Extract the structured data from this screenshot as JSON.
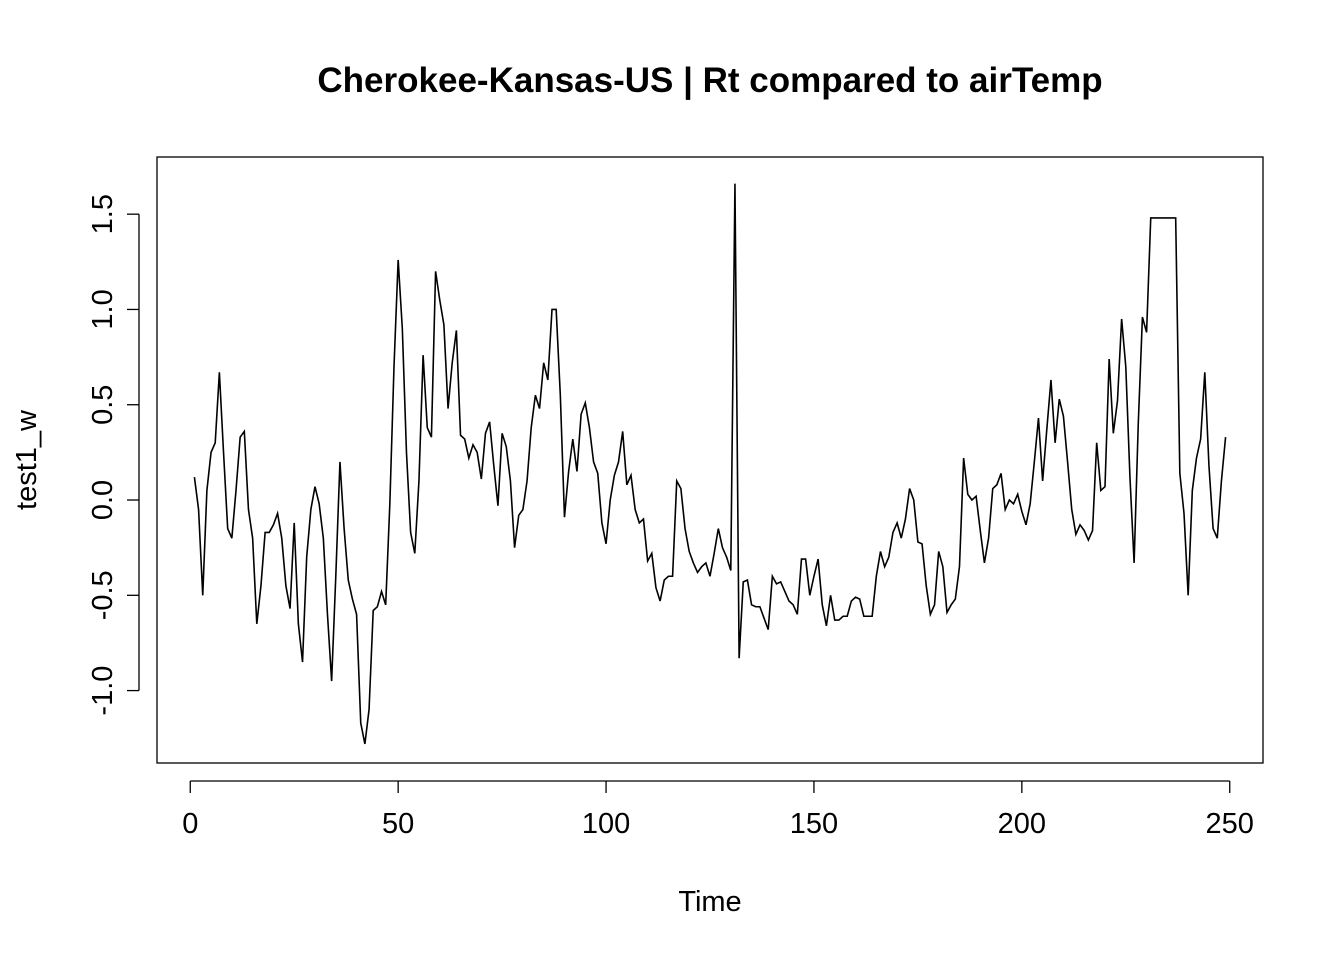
{
  "chart_data": {
    "type": "line",
    "title": "Cherokee-Kansas-US | Rt compared to airTemp",
    "xlabel": "Time",
    "ylabel": "test1_w",
    "xlim": [
      -8,
      258
    ],
    "ylim": [
      -1.38,
      1.8
    ],
    "x_ticks": [
      0,
      50,
      100,
      150,
      200,
      250
    ],
    "y_ticks": [
      -1.0,
      -0.5,
      0.0,
      0.5,
      1.0,
      1.5
    ],
    "x_tick_labels": [
      "0",
      "50",
      "100",
      "150",
      "200",
      "250"
    ],
    "y_tick_labels": [
      "-1.0",
      "-0.5",
      "0.0",
      "0.5",
      "1.0",
      "1.5"
    ],
    "grid": false,
    "legend": "none",
    "line_color": "#000000",
    "x_start": 1,
    "values": [
      0.12,
      -0.05,
      -0.5,
      0.05,
      0.25,
      0.3,
      0.67,
      0.25,
      -0.15,
      -0.2,
      0.05,
      0.33,
      0.36,
      -0.05,
      -0.2,
      -0.65,
      -0.45,
      -0.17,
      -0.17,
      -0.13,
      -0.07,
      -0.2,
      -0.45,
      -0.57,
      -0.12,
      -0.65,
      -0.85,
      -0.3,
      -0.05,
      0.07,
      -0.02,
      -0.2,
      -0.6,
      -0.95,
      -0.4,
      0.2,
      -0.15,
      -0.42,
      -0.52,
      -0.6,
      -1.17,
      -1.28,
      -1.1,
      -0.58,
      -0.56,
      -0.48,
      -0.55,
      -0.02,
      0.7,
      1.26,
      0.9,
      0.25,
      -0.17,
      -0.28,
      0.1,
      0.76,
      0.38,
      0.33,
      1.2,
      1.05,
      0.92,
      0.48,
      0.72,
      0.89,
      0.34,
      0.32,
      0.22,
      0.29,
      0.25,
      0.11,
      0.35,
      0.41,
      0.18,
      -0.03,
      0.35,
      0.28,
      0.1,
      -0.25,
      -0.08,
      -0.05,
      0.1,
      0.38,
      0.55,
      0.48,
      0.72,
      0.63,
      1.0,
      1.0,
      0.55,
      -0.09,
      0.15,
      0.32,
      0.15,
      0.45,
      0.51,
      0.38,
      0.2,
      0.14,
      -0.12,
      -0.23,
      0.0,
      0.13,
      0.2,
      0.36,
      0.08,
      0.13,
      -0.05,
      -0.12,
      -0.1,
      -0.32,
      -0.28,
      -0.46,
      -0.53,
      -0.42,
      -0.4,
      -0.4,
      0.1,
      0.06,
      -0.15,
      -0.27,
      -0.33,
      -0.38,
      -0.35,
      -0.33,
      -0.4,
      -0.28,
      -0.15,
      -0.25,
      -0.3,
      -0.37,
      1.66,
      -0.83,
      -0.43,
      -0.42,
      -0.55,
      -0.56,
      -0.56,
      -0.62,
      -0.68,
      -0.4,
      -0.44,
      -0.43,
      -0.48,
      -0.53,
      -0.55,
      -0.6,
      -0.31,
      -0.31,
      -0.5,
      -0.4,
      -0.31,
      -0.55,
      -0.66,
      -0.5,
      -0.63,
      -0.63,
      -0.61,
      -0.61,
      -0.53,
      -0.51,
      -0.52,
      -0.61,
      -0.61,
      -0.61,
      -0.4,
      -0.27,
      -0.35,
      -0.3,
      -0.17,
      -0.12,
      -0.2,
      -0.1,
      0.06,
      0.0,
      -0.22,
      -0.23,
      -0.45,
      -0.6,
      -0.55,
      -0.27,
      -0.35,
      -0.59,
      -0.55,
      -0.52,
      -0.35,
      0.22,
      0.03,
      0.0,
      0.02,
      -0.16,
      -0.33,
      -0.2,
      0.06,
      0.08,
      0.14,
      -0.05,
      0.0,
      -0.02,
      0.03,
      -0.06,
      -0.13,
      -0.02,
      0.2,
      0.43,
      0.1,
      0.37,
      0.63,
      0.3,
      0.53,
      0.44,
      0.2,
      -0.05,
      -0.18,
      -0.13,
      -0.16,
      -0.21,
      -0.16,
      0.3,
      0.05,
      0.07,
      0.74,
      0.35,
      0.52,
      0.95,
      0.7,
      0.12,
      -0.33,
      0.4,
      0.96,
      0.88,
      1.48,
      1.48,
      1.48,
      1.48,
      1.48,
      1.48,
      1.48,
      0.14,
      -0.07,
      -0.5,
      0.05,
      0.22,
      0.32,
      0.67,
      0.18,
      -0.15,
      -0.2,
      0.1,
      0.33
    ]
  }
}
